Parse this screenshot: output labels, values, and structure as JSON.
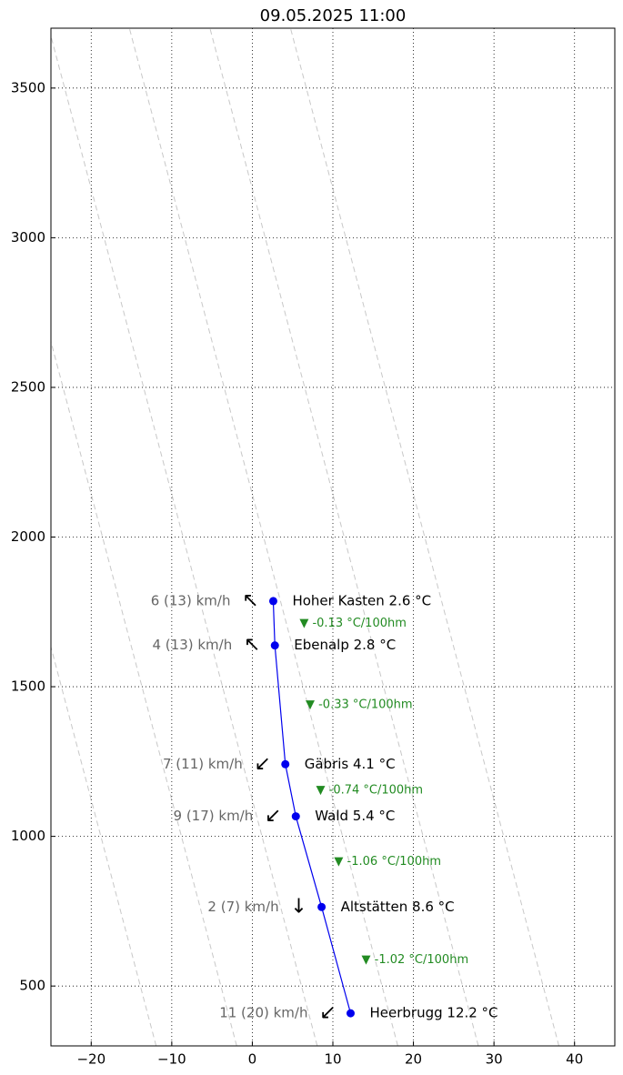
{
  "chart_data": {
    "type": "line",
    "title": "09.05.2025 11:00",
    "x": [
      12.2,
      8.6,
      5.4,
      4.1,
      2.8,
      2.6
    ],
    "series": [
      {
        "color": "#0000ee",
        "values": [
          409,
          764,
          1067,
          1241,
          1638,
          1786
        ]
      }
    ],
    "value_labels": [
      "Heerbrugg 12.2 °C",
      "Altstätten 8.6 °C",
      "Wald 5.4 °C",
      "Gäbris 4.1 °C",
      "Ebenalp 2.8 °C",
      "Hoher Kasten 2.6 °C"
    ],
    "wind_labels": [
      "11 (20) km/h",
      "2 (7) km/h",
      "9 (17) km/h",
      "7 (11) km/h",
      "4 (13) km/h",
      "6 (13) km/h"
    ],
    "wind_arrows": [
      "↙",
      "↓",
      "↙",
      "↙",
      "↖",
      "↖"
    ],
    "lapse_labels": [
      "▼ -1.02 °C/100hm",
      "▼ -1.06 °C/100hm",
      "▼ -0.74 °C/100hm",
      "▼ -0.33 °C/100hm",
      "▼ -0.13 °C/100hm"
    ],
    "lapse_color": "#228b22",
    "dry_adiabats": {
      "temps": [
        -9,
        1,
        11,
        21,
        31,
        41
      ],
      "lapse": 0.0098
    },
    "xlim": [
      -25,
      45
    ],
    "xticks": [
      {
        "value": -20,
        "label": "−20"
      },
      {
        "value": -10,
        "label": "−10"
      },
      0,
      10,
      20,
      30,
      40
    ],
    "ylim": [
      300,
      3700
    ],
    "yticks": [
      500,
      1000,
      1500,
      2000,
      2500,
      3000,
      3500
    ],
    "grid": true
  }
}
